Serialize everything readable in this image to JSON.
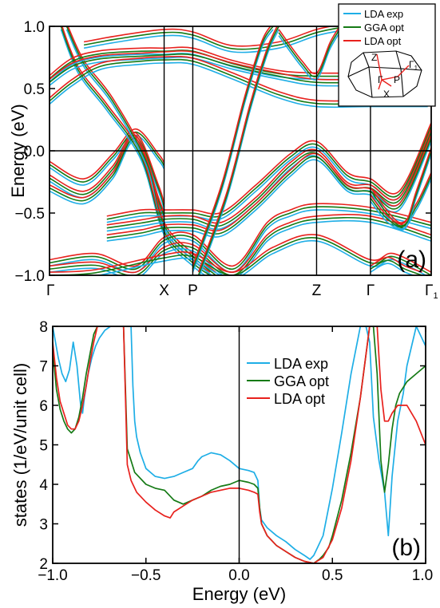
{
  "chart_data": [
    {
      "type": "line",
      "panel_label": "(a)",
      "ylabel": "Energy (eV)",
      "ylim": [
        -1.0,
        1.0
      ],
      "yticks": [
        "-1.0",
        "-0.5",
        "0.0",
        "0.5",
        "1.0"
      ],
      "kpath": [
        {
          "label": "Γ",
          "x": 0.0
        },
        {
          "label": "X",
          "x": 1.0
        },
        {
          "label": "P",
          "x": 1.25
        },
        {
          "label": "Z",
          "x": 2.33
        },
        {
          "label": "Γ",
          "x": 2.8
        },
        {
          "label": "Γ1",
          "x": 3.33
        }
      ],
      "legend": [
        "LDA exp",
        "GGA opt",
        "LDA opt"
      ],
      "inset_labels": [
        "Z",
        "Γ",
        "P",
        "Γ1",
        "X"
      ],
      "zero_line": 0.0,
      "series": [
        {
          "name": "LDA exp",
          "color": "#1eaee6"
        },
        {
          "name": "GGA opt",
          "color": "#157a15"
        },
        {
          "name": "LDA opt",
          "color": "#e8211d"
        }
      ]
    },
    {
      "type": "line",
      "panel_label": "(b)",
      "xlabel": "Energy (eV)",
      "ylabel": "states (1/eV/unit cell)",
      "xlim": [
        -1.0,
        1.0
      ],
      "ylim": [
        2,
        8
      ],
      "xticks": [
        "-1.0",
        "-0.5",
        "0.0",
        "0.5",
        "1.0"
      ],
      "yticks": [
        "2",
        "3",
        "4",
        "5",
        "6",
        "7",
        "8"
      ],
      "legend": [
        "LDA exp",
        "GGA opt",
        "LDA opt"
      ],
      "series": [
        {
          "name": "LDA exp",
          "color": "#1eaee6",
          "x": [
            -1.0,
            -0.97,
            -0.95,
            -0.93,
            -0.91,
            -0.89,
            -0.87,
            -0.85,
            -0.84,
            -0.83,
            -0.81,
            -0.79,
            -0.77,
            -0.75,
            -0.72,
            -0.69,
            -0.66,
            -0.63,
            -0.6,
            -0.58,
            -0.57,
            -0.56,
            -0.55,
            -0.54,
            -0.53,
            -0.5,
            -0.45,
            -0.4,
            -0.35,
            -0.3,
            -0.25,
            -0.22,
            -0.2,
            -0.15,
            -0.1,
            -0.05,
            0.0,
            0.05,
            0.08,
            0.1,
            0.11,
            0.12,
            0.15,
            0.2,
            0.25,
            0.3,
            0.35,
            0.38,
            0.4,
            0.42,
            0.45,
            0.5,
            0.55,
            0.6,
            0.65,
            0.68,
            0.7,
            0.72,
            0.75,
            0.78,
            0.8,
            0.82,
            0.85,
            0.88,
            0.9,
            0.95,
            1.0
          ],
          "y": [
            8.0,
            7.2,
            6.8,
            6.6,
            6.9,
            7.6,
            7.0,
            6.0,
            5.8,
            6.2,
            6.8,
            7.2,
            7.5,
            7.7,
            7.9,
            8.0,
            8.0,
            8.0,
            8.0,
            8.0,
            6.5,
            5.6,
            5.2,
            5.0,
            4.8,
            4.4,
            4.2,
            4.15,
            4.2,
            4.3,
            4.4,
            4.6,
            4.7,
            4.8,
            4.75,
            4.6,
            4.4,
            4.35,
            4.3,
            4.1,
            3.4,
            3.1,
            2.9,
            2.7,
            2.55,
            2.35,
            2.2,
            2.1,
            2.2,
            2.4,
            2.7,
            3.9,
            5.3,
            6.8,
            8.0,
            8.0,
            7.6,
            5.7,
            4.6,
            3.8,
            2.7,
            4.2,
            5.6,
            6.3,
            7.0,
            8.0,
            7.5
          ]
        },
        {
          "name": "GGA opt",
          "color": "#157a15",
          "x": [
            -1.0,
            -0.98,
            -0.96,
            -0.94,
            -0.92,
            -0.9,
            -0.88,
            -0.86,
            -0.84,
            -0.82,
            -0.8,
            -0.78,
            -0.76,
            -0.74,
            -0.72,
            -0.7,
            -0.68,
            -0.66,
            -0.64,
            -0.62,
            -0.6,
            -0.58,
            -0.56,
            -0.5,
            -0.45,
            -0.4,
            -0.35,
            -0.3,
            -0.25,
            -0.2,
            -0.15,
            -0.1,
            -0.05,
            0.0,
            0.05,
            0.08,
            0.1,
            0.11,
            0.12,
            0.15,
            0.2,
            0.25,
            0.3,
            0.35,
            0.4,
            0.43,
            0.45,
            0.48,
            0.5,
            0.55,
            0.6,
            0.65,
            0.7,
            0.72,
            0.74,
            0.76,
            0.78,
            0.8,
            0.82,
            0.84,
            0.86,
            0.9,
            0.95,
            1.0
          ],
          "y": [
            7.4,
            6.4,
            5.9,
            5.6,
            5.4,
            5.3,
            5.4,
            5.7,
            6.2,
            6.8,
            7.3,
            7.8,
            8.0,
            8.0,
            8.0,
            8.0,
            8.0,
            8.0,
            8.0,
            8.0,
            4.9,
            4.6,
            4.3,
            4.0,
            3.9,
            3.85,
            3.6,
            3.5,
            3.6,
            3.7,
            3.85,
            3.95,
            4.0,
            4.1,
            4.05,
            4.0,
            3.9,
            3.4,
            3.0,
            2.7,
            2.45,
            2.3,
            2.15,
            2.05,
            2.0,
            2.1,
            2.2,
            2.4,
            2.7,
            3.6,
            4.8,
            6.2,
            8.0,
            8.0,
            6.8,
            4.6,
            3.8,
            4.5,
            5.4,
            6.0,
            6.3,
            6.6,
            6.8,
            7.0
          ]
        },
        {
          "name": "LDA opt",
          "color": "#e8211d",
          "x": [
            -1.0,
            -0.98,
            -0.96,
            -0.94,
            -0.92,
            -0.9,
            -0.88,
            -0.86,
            -0.84,
            -0.82,
            -0.8,
            -0.78,
            -0.76,
            -0.74,
            -0.72,
            -0.7,
            -0.68,
            -0.66,
            -0.64,
            -0.62,
            -0.6,
            -0.58,
            -0.55,
            -0.5,
            -0.45,
            -0.4,
            -0.37,
            -0.35,
            -0.3,
            -0.25,
            -0.2,
            -0.15,
            -0.1,
            -0.05,
            0.0,
            0.05,
            0.08,
            0.1,
            0.11,
            0.12,
            0.15,
            0.2,
            0.25,
            0.3,
            0.35,
            0.4,
            0.45,
            0.5,
            0.55,
            0.6,
            0.65,
            0.7,
            0.72,
            0.74,
            0.76,
            0.78,
            0.8,
            0.82,
            0.85,
            0.9,
            0.95,
            1.0
          ],
          "y": [
            7.6,
            6.7,
            6.1,
            5.8,
            5.5,
            5.4,
            5.4,
            5.6,
            6.0,
            6.5,
            7.1,
            7.6,
            8.0,
            8.0,
            8.0,
            8.0,
            8.0,
            8.0,
            8.0,
            8.0,
            4.5,
            4.1,
            3.8,
            3.55,
            3.35,
            3.2,
            3.15,
            3.3,
            3.45,
            3.6,
            3.7,
            3.8,
            3.85,
            3.9,
            3.9,
            3.85,
            3.8,
            3.75,
            3.3,
            3.0,
            2.7,
            2.45,
            2.3,
            2.15,
            2.05,
            2.0,
            2.15,
            2.6,
            3.4,
            4.6,
            6.2,
            8.0,
            8.0,
            8.0,
            6.4,
            5.6,
            5.6,
            5.8,
            6.0,
            6.0,
            5.6,
            5.0
          ]
        }
      ]
    }
  ]
}
